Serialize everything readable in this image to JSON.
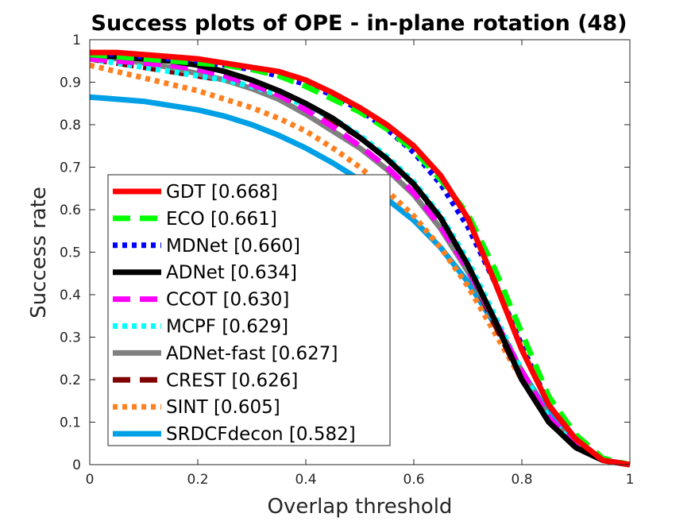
{
  "chart_data": {
    "type": "line",
    "title": "Success plots of OPE - in-plane rotation (48)",
    "xlabel": "Overlap threshold",
    "ylabel": "Success rate",
    "xlim": [
      0,
      1
    ],
    "ylim": [
      0,
      1
    ],
    "xticks": [
      "0",
      "0.2",
      "0.4",
      "0.6",
      "0.8",
      "1"
    ],
    "yticks": [
      "0",
      "0.1",
      "0.2",
      "0.3",
      "0.4",
      "0.5",
      "0.6",
      "0.7",
      "0.8",
      "0.9",
      "1"
    ],
    "legend_position": "left-middle",
    "x": [
      0,
      0.05,
      0.1,
      0.15,
      0.2,
      0.25,
      0.3,
      0.35,
      0.4,
      0.45,
      0.5,
      0.55,
      0.6,
      0.65,
      0.7,
      0.75,
      0.8,
      0.85,
      0.9,
      0.95,
      1.0
    ],
    "series": [
      {
        "name": "GDT [0.668]",
        "color": "#ff0000",
        "style": "solid",
        "values": [
          0.97,
          0.97,
          0.965,
          0.96,
          0.955,
          0.945,
          0.935,
          0.925,
          0.905,
          0.875,
          0.84,
          0.8,
          0.75,
          0.68,
          0.58,
          0.43,
          0.27,
          0.14,
          0.06,
          0.01,
          0.0
        ]
      },
      {
        "name": "ECO [0.661]",
        "color": "#00ff00",
        "style": "dashed",
        "values": [
          0.965,
          0.96,
          0.955,
          0.95,
          0.945,
          0.94,
          0.93,
          0.915,
          0.89,
          0.86,
          0.83,
          0.79,
          0.74,
          0.67,
          0.59,
          0.46,
          0.31,
          0.16,
          0.07,
          0.015,
          0.0
        ]
      },
      {
        "name": "MDNet [0.660]",
        "color": "#0000ff",
        "style": "dotted",
        "values": [
          0.97,
          0.965,
          0.96,
          0.955,
          0.95,
          0.94,
          0.93,
          0.915,
          0.895,
          0.87,
          0.835,
          0.79,
          0.735,
          0.66,
          0.56,
          0.43,
          0.28,
          0.14,
          0.06,
          0.01,
          0.0
        ]
      },
      {
        "name": "ADNet [0.634]",
        "color": "#000000",
        "style": "solid",
        "values": [
          0.965,
          0.96,
          0.955,
          0.95,
          0.94,
          0.925,
          0.905,
          0.88,
          0.85,
          0.815,
          0.77,
          0.72,
          0.66,
          0.58,
          0.47,
          0.34,
          0.2,
          0.1,
          0.04,
          0.01,
          0.0
        ]
      },
      {
        "name": "CCOT [0.630]",
        "color": "#ff00ff",
        "style": "dashed",
        "values": [
          0.955,
          0.95,
          0.945,
          0.94,
          0.93,
          0.915,
          0.895,
          0.87,
          0.835,
          0.795,
          0.75,
          0.7,
          0.64,
          0.56,
          0.46,
          0.34,
          0.22,
          0.11,
          0.05,
          0.01,
          0.0
        ]
      },
      {
        "name": "MCPF [0.629]",
        "color": "#00ffff",
        "style": "dotted",
        "values": [
          0.955,
          0.945,
          0.935,
          0.925,
          0.915,
          0.905,
          0.89,
          0.87,
          0.845,
          0.815,
          0.775,
          0.725,
          0.665,
          0.585,
          0.48,
          0.35,
          0.22,
          0.11,
          0.045,
          0.01,
          0.0
        ]
      },
      {
        "name": "ADNet-fast [0.627]",
        "color": "#808080",
        "style": "solid",
        "values": [
          0.965,
          0.955,
          0.945,
          0.935,
          0.92,
          0.905,
          0.885,
          0.86,
          0.825,
          0.785,
          0.745,
          0.695,
          0.635,
          0.555,
          0.455,
          0.34,
          0.22,
          0.11,
          0.045,
          0.01,
          0.0
        ]
      },
      {
        "name": "CREST [0.626]",
        "color": "#800000",
        "style": "dashed",
        "values": [
          0.955,
          0.945,
          0.935,
          0.925,
          0.915,
          0.905,
          0.89,
          0.87,
          0.845,
          0.81,
          0.77,
          0.72,
          0.66,
          0.575,
          0.46,
          0.33,
          0.2,
          0.1,
          0.04,
          0.01,
          0.0
        ]
      },
      {
        "name": "SINT [0.605]",
        "color": "#ff8020",
        "style": "dotted",
        "values": [
          0.94,
          0.925,
          0.91,
          0.895,
          0.88,
          0.86,
          0.84,
          0.815,
          0.785,
          0.745,
          0.7,
          0.645,
          0.585,
          0.51,
          0.42,
          0.31,
          0.2,
          0.1,
          0.045,
          0.01,
          0.0
        ]
      },
      {
        "name": "SRDCFdecon [0.582]",
        "color": "#00a0e6",
        "style": "solid",
        "values": [
          0.865,
          0.86,
          0.855,
          0.845,
          0.835,
          0.82,
          0.8,
          0.775,
          0.745,
          0.71,
          0.67,
          0.625,
          0.575,
          0.51,
          0.43,
          0.33,
          0.22,
          0.12,
          0.05,
          0.01,
          0.0
        ]
      }
    ]
  }
}
